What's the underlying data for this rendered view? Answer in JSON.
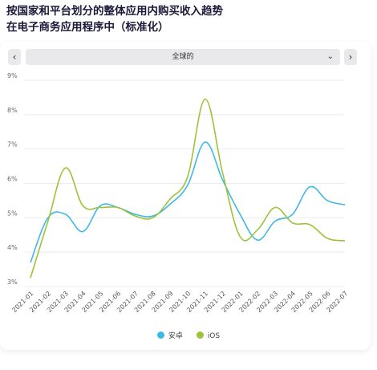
{
  "header": {
    "title_line1": "按国家和平台划分的整体应用内购买收入趋势",
    "title_line2": "在电子商务应用程序中（标准化）"
  },
  "controls": {
    "prev": "‹",
    "next": "›",
    "region_selected": "全球的",
    "chevron": "⌄"
  },
  "chart_data": {
    "type": "line",
    "categories": [
      "2021-01",
      "2021-02",
      "2021-03",
      "2021-04",
      "2021-05",
      "2021-06",
      "2021-07",
      "2021-08",
      "2021-09",
      "2021-10",
      "2021-11",
      "2021-12",
      "2022-01",
      "2022-02",
      "2022-03",
      "2022-04",
      "2022-05",
      "2022-06",
      "2022-07"
    ],
    "series": [
      {
        "name": "安卓",
        "color": "#3fb8e6",
        "values": [
          3.7,
          5.0,
          5.1,
          4.6,
          5.35,
          5.3,
          5.1,
          5.05,
          5.4,
          5.95,
          7.2,
          6.1,
          5.1,
          4.35,
          4.9,
          5.1,
          5.9,
          5.5,
          5.38
        ]
      },
      {
        "name": "iOS",
        "color": "#9cc33a",
        "values": [
          3.25,
          4.9,
          6.45,
          5.35,
          5.3,
          5.3,
          5.05,
          5.0,
          5.55,
          6.2,
          8.45,
          6.3,
          4.45,
          4.65,
          5.3,
          4.85,
          4.8,
          4.4,
          4.33
        ]
      }
    ],
    "y_ticks": [
      "3%",
      "4%",
      "5%",
      "6%",
      "7%",
      "8%",
      "9%"
    ],
    "ylim": [
      3,
      9
    ],
    "grid": true,
    "legend_position": "bottom"
  }
}
